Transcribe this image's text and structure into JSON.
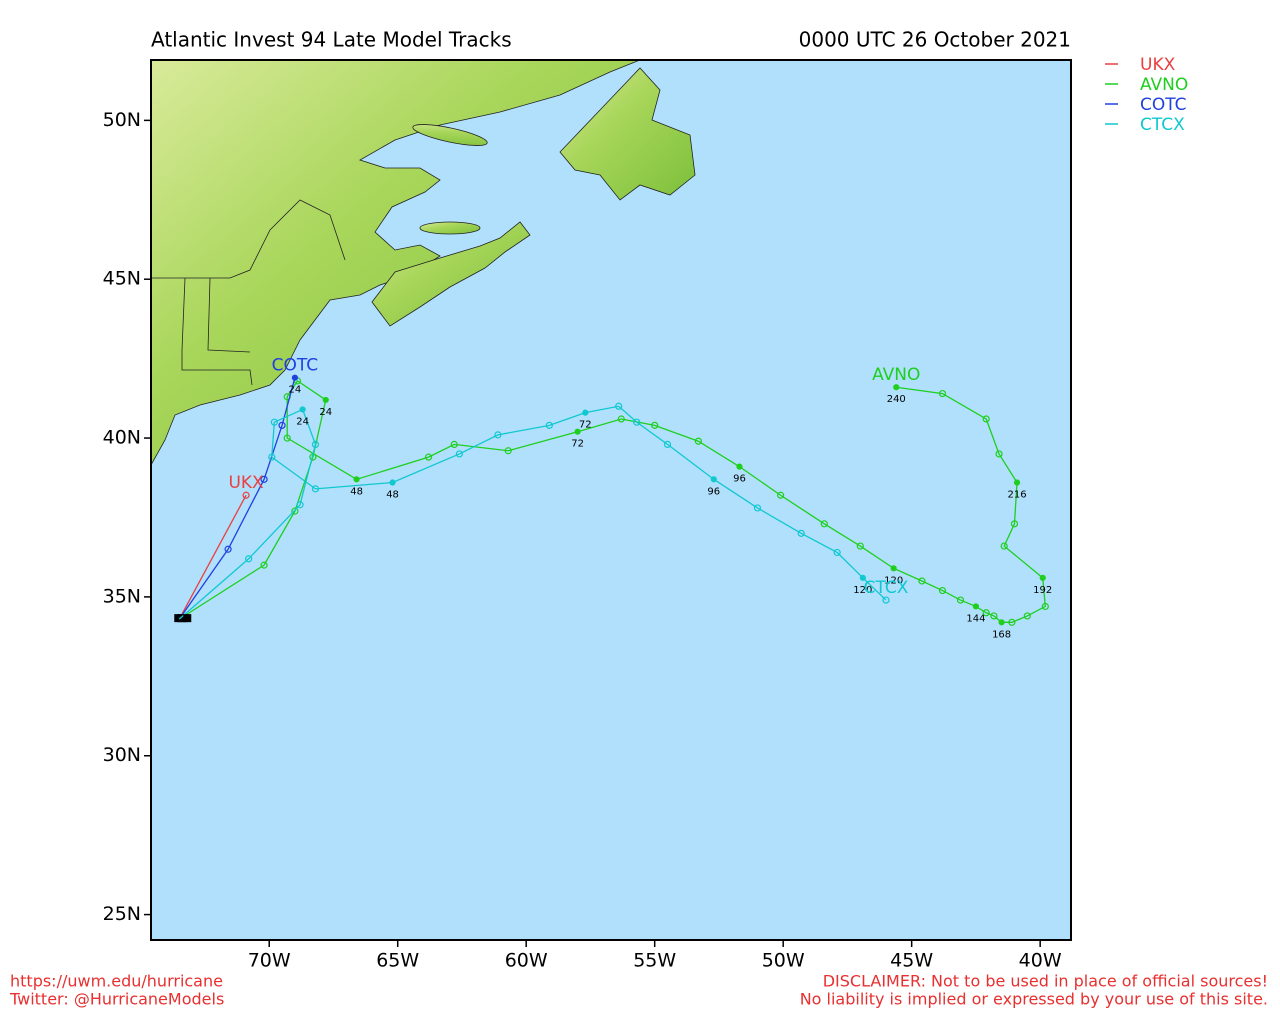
{
  "chart_data": {
    "type": "line",
    "title": "Atlantic Invest 94 Late Model Tracks",
    "subtitle": "0000 UTC 26 October 2021",
    "xlim": [
      -74.6,
      -38.8
    ],
    "ylim": [
      24.2,
      51.9
    ],
    "xticks": [
      {
        "value": -70,
        "label": "70W"
      },
      {
        "value": -65,
        "label": "65W"
      },
      {
        "value": -60,
        "label": "60W"
      },
      {
        "value": -55,
        "label": "55W"
      },
      {
        "value": -50,
        "label": "50W"
      },
      {
        "value": -45,
        "label": "45W"
      },
      {
        "value": -40,
        "label": "40W"
      }
    ],
    "yticks": [
      {
        "value": 25,
        "label": "25N"
      },
      {
        "value": 30,
        "label": "30N"
      },
      {
        "value": 35,
        "label": "35N"
      },
      {
        "value": 40,
        "label": "40N"
      },
      {
        "value": 45,
        "label": "45N"
      },
      {
        "value": 50,
        "label": "50N"
      }
    ],
    "legend": "outside-right",
    "series": [
      {
        "name": "UKX",
        "color": "#e84040",
        "lon": [
          -73.5,
          -70.9
        ],
        "lat": [
          34.3,
          38.2
        ],
        "hour_labels": [
          null,
          null
        ]
      },
      {
        "name": "AVNO",
        "color": "#1ecf1e",
        "lon": [
          -73.5,
          -70.2,
          -69.0,
          -68.3,
          -67.8,
          -68.9,
          -69.3,
          -69.3,
          -66.6,
          -63.8,
          -62.8,
          -60.7,
          -58.0,
          -56.3,
          -55.0,
          -53.3,
          -51.7,
          -50.1,
          -48.4,
          -47.0,
          -45.7,
          -44.6,
          -43.8,
          -43.1,
          -42.5,
          -42.1,
          -41.8,
          -41.5,
          -41.1,
          -40.5,
          -39.8,
          -39.9,
          -41.4,
          -41.0,
          -40.9,
          -41.6,
          -42.1,
          -43.8,
          -45.6
        ],
        "lat": [
          34.3,
          36.0,
          37.7,
          39.4,
          41.2,
          41.8,
          41.3,
          40.0,
          38.7,
          39.4,
          39.8,
          39.6,
          40.2,
          40.6,
          40.4,
          39.9,
          39.1,
          38.2,
          37.3,
          36.6,
          35.9,
          35.5,
          35.2,
          34.9,
          34.7,
          34.5,
          34.4,
          34.2,
          34.2,
          34.4,
          34.7,
          35.6,
          36.6,
          37.3,
          38.6,
          39.5,
          40.6,
          41.4,
          41.6
        ],
        "hour_labels": [
          null,
          null,
          null,
          null,
          "24",
          null,
          null,
          null,
          "48",
          null,
          null,
          null,
          "72",
          null,
          null,
          null,
          "96",
          null,
          null,
          null,
          "120",
          null,
          null,
          null,
          "144",
          null,
          null,
          "168",
          null,
          null,
          null,
          "192",
          null,
          null,
          "216",
          null,
          null,
          null,
          "240"
        ]
      },
      {
        "name": "COTC",
        "color": "#2040e0",
        "lon": [
          -73.5,
          -71.6,
          -70.2,
          -69.5,
          -69.0
        ],
        "lat": [
          34.3,
          36.5,
          38.7,
          40.4,
          41.9
        ],
        "hour_labels": [
          null,
          null,
          null,
          null,
          "24"
        ]
      },
      {
        "name": "CTCX",
        "color": "#10c8d0",
        "lon": [
          -73.5,
          -70.8,
          -68.8,
          -68.2,
          -68.7,
          -69.8,
          -69.9,
          -68.2,
          -65.2,
          -62.6,
          -61.1,
          -59.1,
          -57.7,
          -56.4,
          -55.7,
          -54.5,
          -52.7,
          -51.0,
          -49.3,
          -47.9,
          -46.9,
          -46.0
        ],
        "lat": [
          34.3,
          36.2,
          37.9,
          39.8,
          40.9,
          40.5,
          39.4,
          38.4,
          38.6,
          39.5,
          40.1,
          40.4,
          40.8,
          41.0,
          40.5,
          39.8,
          38.7,
          37.8,
          37.0,
          36.4,
          35.6,
          34.9
        ],
        "hour_labels": [
          null,
          null,
          null,
          null,
          "24",
          null,
          null,
          null,
          "48",
          null,
          null,
          null,
          "72",
          null,
          null,
          null,
          "96",
          null,
          null,
          null,
          "120",
          null
        ]
      }
    ]
  },
  "footer": {
    "left": [
      "https://uwm.edu/hurricane",
      "Twitter: @HurricaneModels"
    ],
    "right": [
      "DISCLAIMER: Not to be used in place of official sources!",
      "No liability is implied or expressed by your use of this site."
    ]
  }
}
